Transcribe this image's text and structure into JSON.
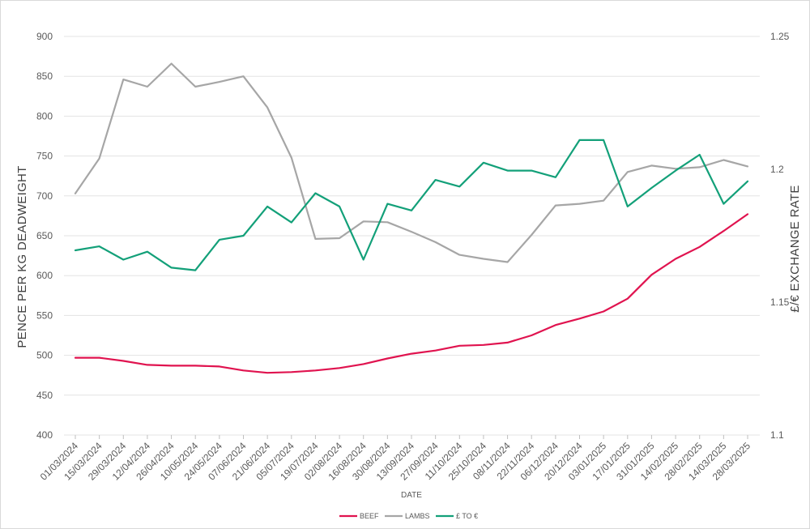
{
  "chart_data": {
    "type": "line",
    "xlabel": "DATE",
    "ylabel": "PENCE PER KG DEADWEIGHT",
    "y2label": "£/€ EXCHANGE RATE",
    "ylim": [
      400,
      900
    ],
    "yticks": [
      400,
      450,
      500,
      550,
      600,
      650,
      700,
      750,
      800,
      850,
      900
    ],
    "y2lim": [
      1.1,
      1.25
    ],
    "y2ticks": [
      "1.1",
      "1.15",
      "1.2",
      "1.25"
    ],
    "grid": true,
    "legend_position": "bottom",
    "categories": [
      "01/03/2024",
      "15/03/2024",
      "29/03/2024",
      "12/04/2024",
      "26/04/2024",
      "10/05/2024",
      "24/05/2024",
      "07/06/2024",
      "21/06/2024",
      "05/07/2024",
      "19/07/2024",
      "02/08/2024",
      "16/08/2024",
      "30/08/2024",
      "13/09/2024",
      "27/09/2024",
      "11/10/2024",
      "25/10/2024",
      "08/11/2024",
      "22/11/2024",
      "06/12/2024",
      "20/12/2024",
      "03/01/2025",
      "17/01/2025",
      "31/01/2025",
      "14/02/2025",
      "28/02/2025",
      "14/03/2025",
      "28/03/2025"
    ],
    "series": [
      {
        "name": "BEEF",
        "axis": "left",
        "color": "#e0134f",
        "values": [
          497,
          497,
          493,
          488,
          487,
          487,
          486,
          481,
          478,
          479,
          481,
          484,
          489,
          496,
          502,
          506,
          512,
          513,
          516,
          525,
          538,
          546,
          555,
          571,
          601,
          621,
          636,
          656,
          677
        ]
      },
      {
        "name": "LAMBS",
        "axis": "left",
        "color": "#a6a6a6",
        "values": [
          703,
          747,
          846,
          837,
          866,
          837,
          843,
          850,
          811,
          748,
          646,
          647,
          668,
          667,
          655,
          642,
          626,
          621,
          617,
          651,
          688,
          690,
          694,
          730,
          738,
          734,
          736,
          745,
          737
        ]
      },
      {
        "name": "£ TO €",
        "axis": "right",
        "color": "#13a079",
        "values": [
          1.1695,
          1.171,
          1.166,
          1.169,
          1.163,
          1.162,
          1.1735,
          1.175,
          1.186,
          1.18,
          1.191,
          1.186,
          1.166,
          1.187,
          1.1845,
          1.196,
          1.1935,
          1.2025,
          1.1995,
          1.1995,
          1.197,
          1.211,
          1.211,
          1.186,
          1.193,
          1.1995,
          1.2055,
          1.187,
          1.1955
        ]
      }
    ]
  }
}
